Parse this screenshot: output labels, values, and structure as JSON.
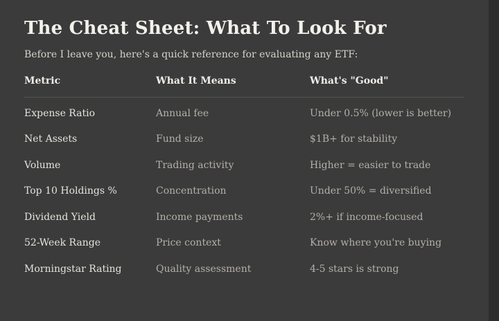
{
  "page": {
    "title": "The Cheat Sheet: What To Look For",
    "subtitle": "Before I leave you, here's a quick reference for evaluating any ETF:"
  },
  "table": {
    "headers": [
      "Metric",
      "What It Means",
      "What's \"Good\""
    ],
    "rows": [
      [
        "Expense Ratio",
        "Annual fee",
        "Under 0.5% (lower is better)"
      ],
      [
        "Net Assets",
        "Fund size",
        "$1B+ for stability"
      ],
      [
        "Volume",
        "Trading activity",
        "Higher = easier to trade"
      ],
      [
        "Top 10 Holdings %",
        "Concentration",
        "Under 50% = diversified"
      ],
      [
        "Dividend Yield",
        "Income payments",
        "2%+ if income-focused"
      ],
      [
        "52-Week Range",
        "Price context",
        "Know where you're buying"
      ],
      [
        "Morningstar Rating",
        "Quality assessment",
        "4-5 stars is strong"
      ]
    ]
  },
  "colors": {
    "background": "#3b3b3b",
    "scrollbar_track": "#2d2d2d",
    "title_text": "#f3f1eb",
    "subtitle_text": "#d6d3cc",
    "header_text": "#efece6",
    "metric_text": "#e6e3dc",
    "secondary_text": "#b4b0a9",
    "divider": "#555351"
  }
}
